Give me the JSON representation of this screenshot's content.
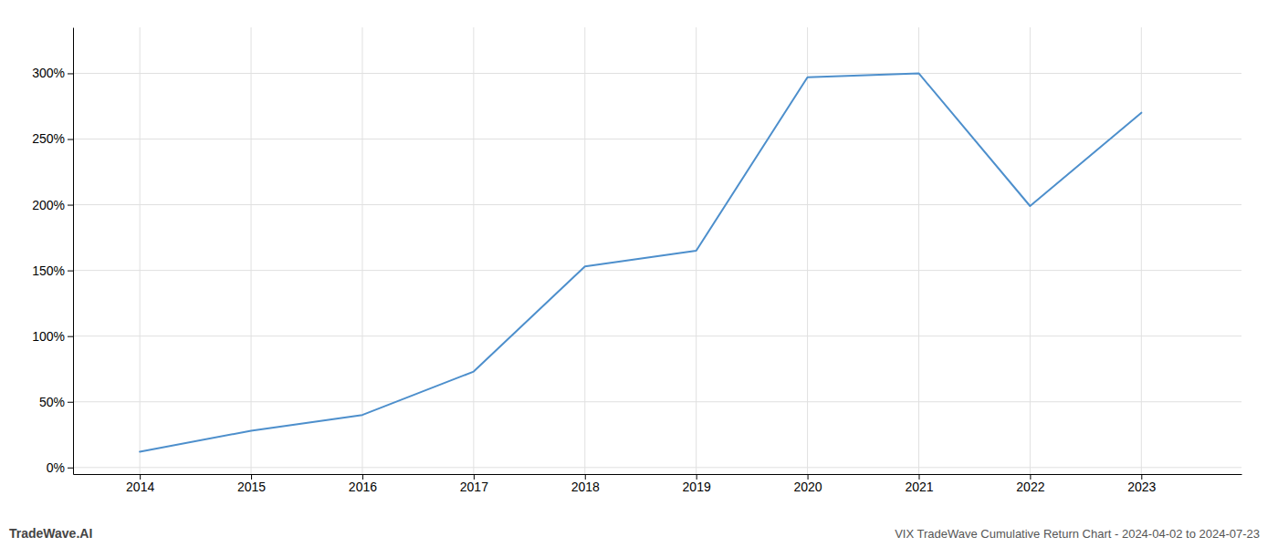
{
  "chart_data": {
    "type": "line",
    "title": "VIX TradeWave Cumulative Return Chart - 2024-04-02 to 2024-07-23",
    "annotations": [
      "TradeWave.AI"
    ],
    "x": [
      2014,
      2015,
      2016,
      2017,
      2018,
      2019,
      2020,
      2021,
      2022,
      2023
    ],
    "values": [
      0.12,
      0.28,
      0.4,
      0.73,
      1.53,
      1.65,
      2.97,
      3.0,
      1.99,
      2.7
    ],
    "color": "#4d8fcc",
    "xlim": [
      2013.4,
      2023.9
    ],
    "xticks": [
      2014,
      2015,
      2016,
      2017,
      2018,
      2019,
      2020,
      2021,
      2022,
      2023
    ],
    "ylim": [
      -0.05,
      3.35
    ],
    "yticks": [
      {
        "value": 0.0,
        "label": "0%"
      },
      {
        "value": 0.5,
        "label": "50%"
      },
      {
        "value": 1.0,
        "label": "100%"
      },
      {
        "value": 1.5,
        "label": "150%"
      },
      {
        "value": 2.0,
        "label": "200%"
      },
      {
        "value": 2.5,
        "label": "250%"
      },
      {
        "value": 3.0,
        "label": "300%"
      }
    ],
    "grid": true
  }
}
